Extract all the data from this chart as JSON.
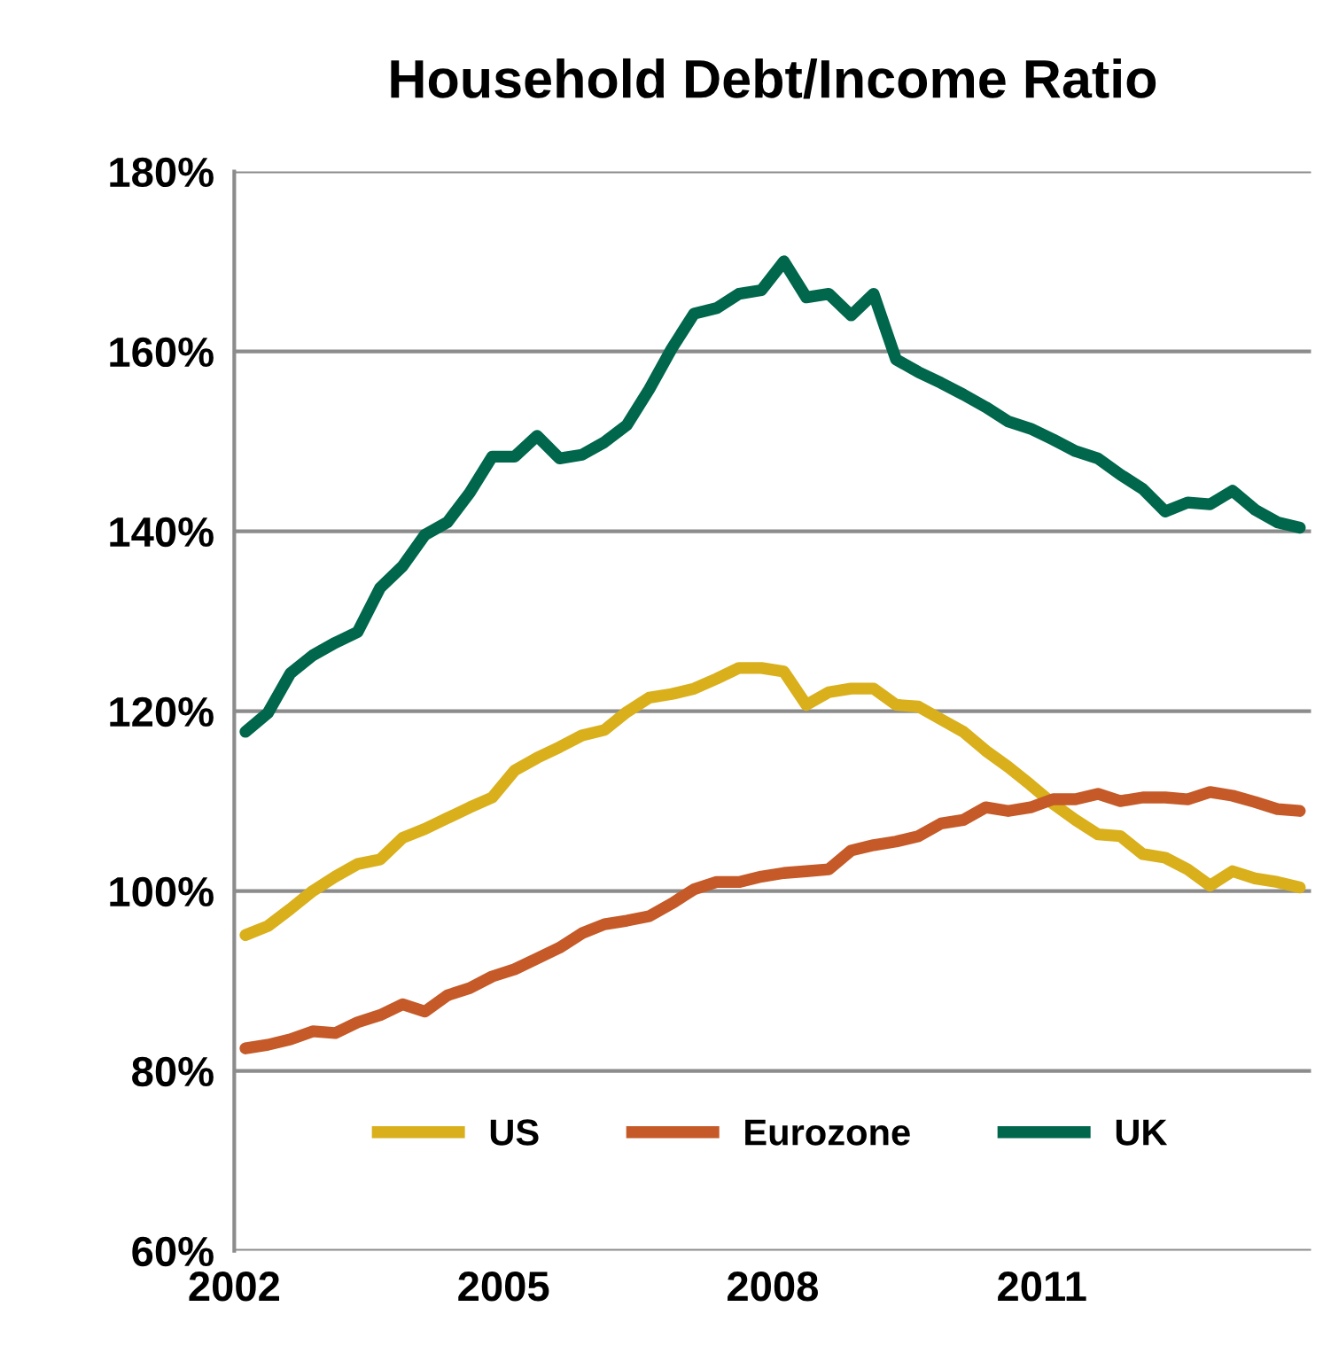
{
  "chart_data": {
    "type": "line",
    "title": "Household Debt/Income Ratio",
    "x": [
      2002.125,
      2002.375,
      2002.625,
      2002.875,
      2003.125,
      2003.375,
      2003.625,
      2003.875,
      2004.125,
      2004.375,
      2004.625,
      2004.875,
      2005.125,
      2005.375,
      2005.625,
      2005.875,
      2006.125,
      2006.375,
      2006.625,
      2006.875,
      2007.125,
      2007.375,
      2007.625,
      2007.875,
      2008.125,
      2008.375,
      2008.625,
      2008.875,
      2009.125,
      2009.375,
      2009.625,
      2009.875,
      2010.125,
      2010.375,
      2010.625,
      2010.875,
      2011.125,
      2011.375,
      2011.625,
      2011.875,
      2012.125,
      2012.375,
      2012.625,
      2012.875,
      2013.125,
      2013.375,
      2013.625,
      2013.875
    ],
    "series": [
      {
        "name": "US",
        "color": "#d9b01c",
        "values": [
          95.1,
          96.1,
          98.0,
          100.0,
          101.6,
          103.0,
          103.5,
          105.9,
          106.9,
          108.1,
          109.3,
          110.4,
          113.4,
          114.8,
          116.0,
          117.3,
          117.9,
          119.9,
          121.5,
          121.9,
          122.5,
          123.6,
          124.8,
          124.8,
          124.4,
          120.7,
          122.1,
          122.5,
          122.5,
          120.7,
          120.5,
          119.1,
          117.7,
          115.6,
          113.8,
          111.8,
          109.7,
          107.9,
          106.3,
          106.1,
          104.1,
          103.7,
          102.4,
          100.6,
          102.2,
          101.4,
          101.0,
          100.4
        ]
      },
      {
        "name": "Eurozone",
        "color": "#c55a28",
        "values": [
          82.5,
          82.9,
          83.5,
          84.4,
          84.2,
          85.4,
          86.2,
          87.4,
          86.6,
          88.4,
          89.2,
          90.5,
          91.3,
          92.5,
          93.7,
          95.3,
          96.3,
          96.7,
          97.2,
          98.6,
          100.2,
          101.0,
          101.0,
          101.6,
          102.0,
          102.2,
          102.4,
          104.5,
          105.1,
          105.5,
          106.1,
          107.5,
          107.9,
          109.3,
          108.9,
          109.3,
          110.2,
          110.2,
          110.8,
          110.0,
          110.4,
          110.4,
          110.2,
          111.0,
          110.6,
          109.9,
          109.1,
          108.9
        ]
      },
      {
        "name": "UK",
        "color": "#00664c",
        "values": [
          117.7,
          119.8,
          124.2,
          126.2,
          127.6,
          128.8,
          133.7,
          136.1,
          139.6,
          141.0,
          144.3,
          148.3,
          148.3,
          150.6,
          148.1,
          148.5,
          149.9,
          151.8,
          155.8,
          160.3,
          164.2,
          164.8,
          166.4,
          166.8,
          170.0,
          166.0,
          166.4,
          164.0,
          166.4,
          159.1,
          157.7,
          156.5,
          155.2,
          153.8,
          152.2,
          151.4,
          150.2,
          148.9,
          148.1,
          146.3,
          144.7,
          142.2,
          143.2,
          143.0,
          144.5,
          142.4,
          141.0,
          140.4
        ]
      }
    ],
    "xlim": [
      2002,
      2014
    ],
    "xticks": [
      2002,
      2005,
      2008,
      2011
    ],
    "ylim": [
      60,
      180
    ],
    "yticks": [
      {
        "value": 60,
        "label": "60%"
      },
      {
        "value": 80,
        "label": "80%"
      },
      {
        "value": 100,
        "label": "100%"
      },
      {
        "value": 120,
        "label": "120%"
      },
      {
        "value": 140,
        "label": "140%"
      },
      {
        "value": 160,
        "label": "160%"
      },
      {
        "value": 180,
        "label": "180%"
      }
    ],
    "grid": "y",
    "legend": "bottom",
    "marker": "none",
    "line_style": "solid"
  }
}
